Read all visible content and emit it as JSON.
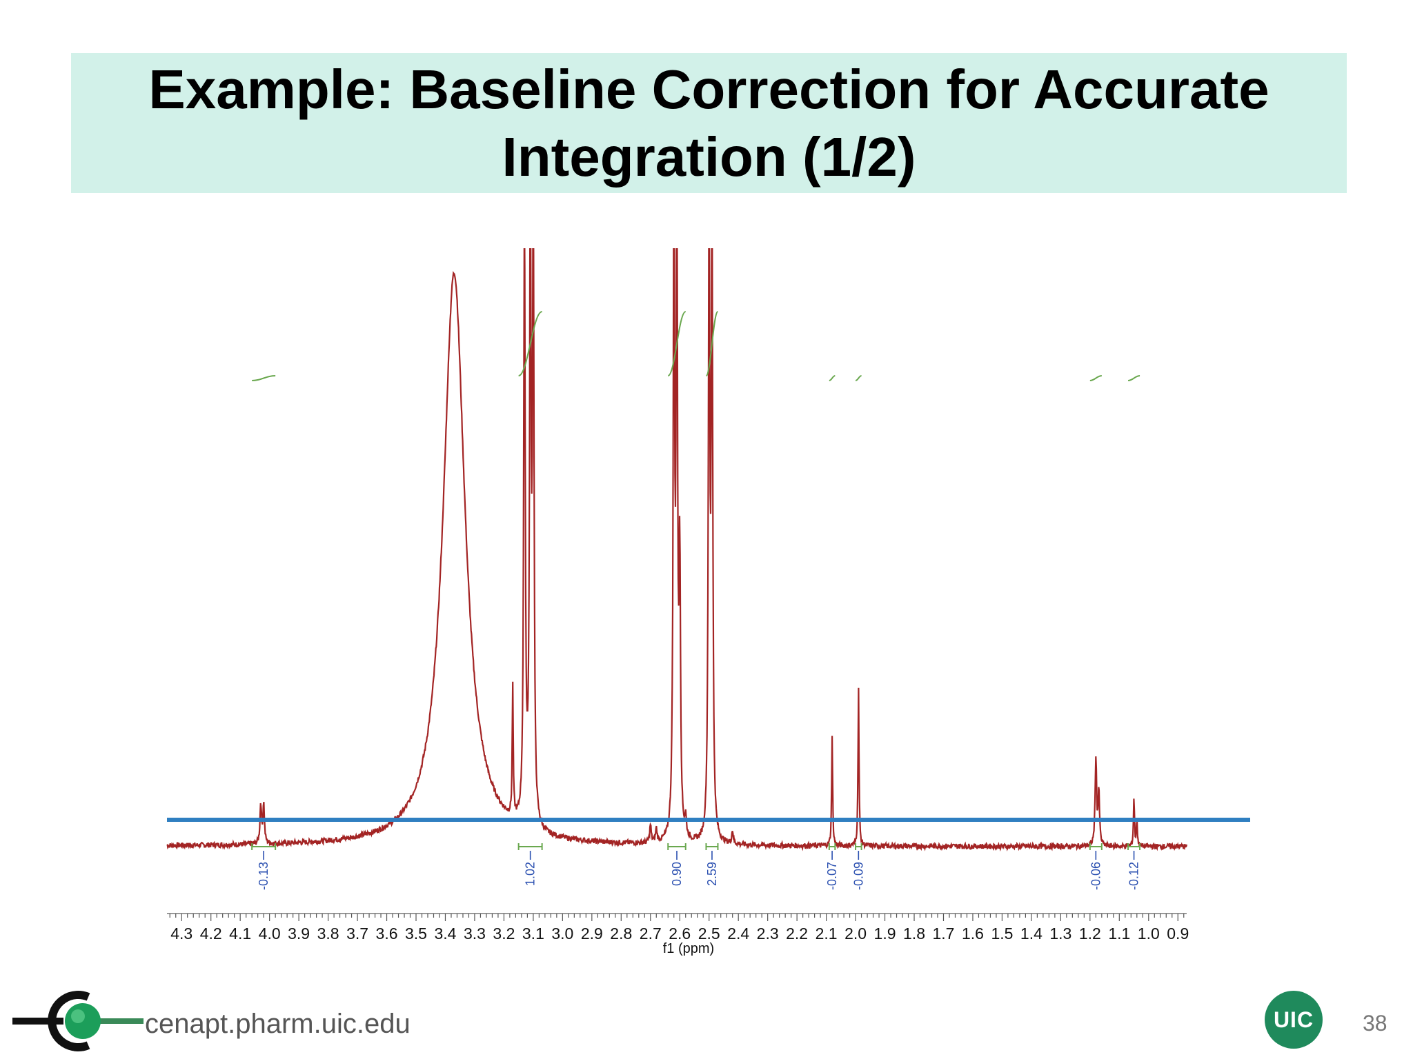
{
  "slide": {
    "title": "Example: Baseline Correction for Accurate Integration (1/2)",
    "footer_url": "cenapt.pharm.uic.edu",
    "badge_text": "UIC",
    "page_number": "38"
  },
  "colors": {
    "title_band": "#d2f1e9",
    "spectrum": "#a32424",
    "integral_curve": "#6aa84f",
    "baseline_marker": "#2f7fc1",
    "integral_label": "#2a4fb0",
    "badge": "#1f8a5c"
  },
  "chart_data": {
    "type": "line",
    "title": "",
    "xlabel": "f1 (ppm)",
    "ylabel": "",
    "x_reversed": true,
    "xlim": [
      4.35,
      0.87
    ],
    "x_ticks": [
      "4.3",
      "4.2",
      "4.1",
      "4.0",
      "3.9",
      "3.8",
      "3.7",
      "3.6",
      "3.5",
      "3.4",
      "3.3",
      "3.2",
      "3.1",
      "3.0",
      "2.9",
      "2.8",
      "2.7",
      "2.6",
      "2.5",
      "2.4",
      "2.3",
      "2.2",
      "2.1",
      "2.0",
      "1.9",
      "1.8",
      "1.7",
      "1.6",
      "1.5",
      "1.4",
      "1.3",
      "1.2",
      "1.1",
      "1.0",
      "0.9"
    ],
    "grid": false,
    "series": [
      {
        "peaks": [
          {
            "ppm": 4.03,
            "height": 0.09,
            "width": 0.003
          },
          {
            "ppm": 4.02,
            "height": 0.09,
            "width": 0.003
          },
          {
            "ppm": 3.37,
            "height": 1.3,
            "width": 0.045
          },
          {
            "ppm": 3.17,
            "height": 0.3,
            "width": 0.002
          },
          {
            "ppm": 3.13,
            "height": 1.4,
            "width": 0.003
          },
          {
            "ppm": 3.11,
            "height": 1.4,
            "width": 0.003
          },
          {
            "ppm": 3.1,
            "height": 1.4,
            "width": 0.003
          },
          {
            "ppm": 2.7,
            "height": 0.04,
            "width": 0.003
          },
          {
            "ppm": 2.68,
            "height": 0.03,
            "width": 0.003
          },
          {
            "ppm": 2.62,
            "height": 1.4,
            "width": 0.003
          },
          {
            "ppm": 2.61,
            "height": 1.4,
            "width": 0.003
          },
          {
            "ppm": 2.6,
            "height": 0.6,
            "width": 0.003
          },
          {
            "ppm": 2.58,
            "height": 0.04,
            "width": 0.003
          },
          {
            "ppm": 2.5,
            "height": 1.4,
            "width": 0.003
          },
          {
            "ppm": 2.49,
            "height": 1.4,
            "width": 0.003
          },
          {
            "ppm": 2.42,
            "height": 0.03,
            "width": 0.003
          },
          {
            "ppm": 2.08,
            "height": 0.25,
            "width": 0.002
          },
          {
            "ppm": 1.99,
            "height": 0.36,
            "width": 0.002
          },
          {
            "ppm": 1.18,
            "height": 0.2,
            "width": 0.003
          },
          {
            "ppm": 1.17,
            "height": 0.12,
            "width": 0.003
          },
          {
            "ppm": 1.05,
            "height": 0.11,
            "width": 0.002
          },
          {
            "ppm": 1.04,
            "height": 0.06,
            "width": 0.002
          }
        ]
      }
    ],
    "integrals": [
      {
        "label": "-0.13",
        "from": 4.06,
        "to": 3.98
      },
      {
        "label": "1.02",
        "from": 3.15,
        "to": 3.07
      },
      {
        "label": "0.90",
        "from": 2.64,
        "to": 2.58
      },
      {
        "label": "2.59",
        "from": 2.51,
        "to": 2.47
      },
      {
        "label": "-0.07",
        "from": 2.09,
        "to": 2.07
      },
      {
        "label": "-0.09",
        "from": 2.0,
        "to": 1.98
      },
      {
        "label": "-0.06",
        "from": 1.2,
        "to": 1.16
      },
      {
        "label": "-0.12",
        "from": 1.07,
        "to": 1.03
      }
    ]
  }
}
